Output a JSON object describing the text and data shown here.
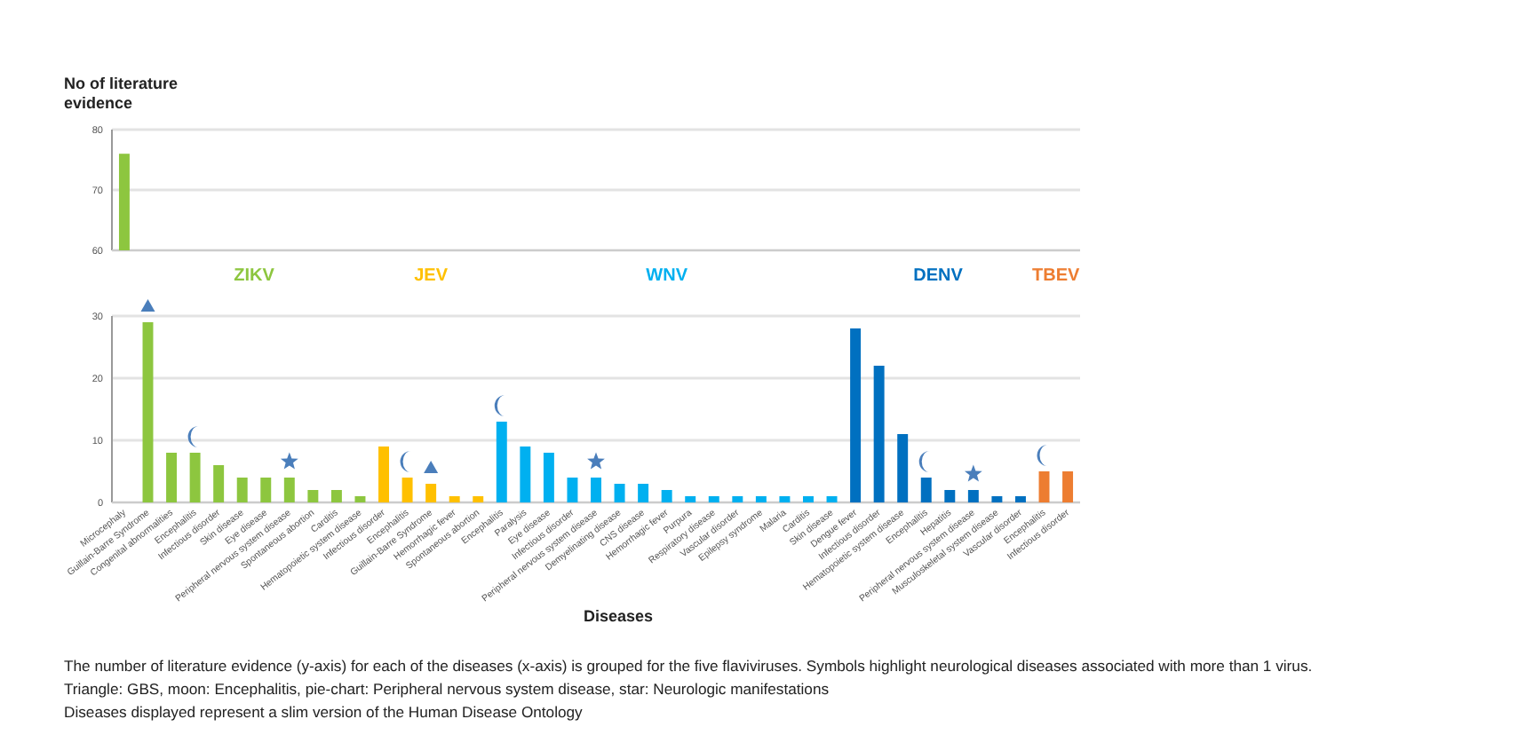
{
  "chart_data": [
    {
      "type": "bar",
      "ylabel": "No of literature evidence",
      "categories": [
        null,
        null,
        null,
        null,
        null,
        null,
        null,
        null,
        null,
        null,
        null,
        null,
        null,
        null,
        null,
        null,
        null,
        null,
        null,
        null,
        null,
        null,
        null,
        null,
        null,
        null,
        null,
        null,
        null,
        null,
        null,
        null,
        null,
        null,
        null,
        null,
        null,
        null,
        null,
        null,
        null
      ],
      "series": [
        {
          "color": "#8dc63f",
          "values": [
            76,
            null,
            null,
            null,
            null,
            null,
            null,
            null,
            null,
            null,
            null,
            null,
            null,
            null,
            null,
            null,
            null,
            null,
            null,
            null,
            null,
            null,
            null,
            null,
            null,
            null,
            null,
            null,
            null,
            null,
            null,
            null,
            null,
            null,
            null,
            null,
            null,
            null,
            null,
            null,
            null
          ]
        }
      ],
      "ylim": [
        60,
        80
      ],
      "yticks": [
        60,
        70,
        80
      ],
      "grid": "y",
      "tick_labels": "y"
    },
    {
      "type": "bar",
      "xlabel": "Diseases",
      "categories": [
        "Microcephaly",
        "Guillain-Barre Syndrome",
        "Congenital abnormalities",
        "Encephalitis",
        "Infectious disorder",
        "Skin disease",
        "Eye disease",
        "Peripheral nervous system disease",
        "Spontaneous abortion",
        "Carditis",
        "Hematopoietic system disease",
        "Infectious disorder",
        "Encephalitis",
        "Guillain-Barre Syndrome",
        "Hemorrhagic fever",
        "Spontaneous abortion",
        "Encephalitis",
        "Paralysis",
        "Eye disease",
        "Infectious disorder",
        "Peripheral nervous system disease",
        "Demyelinating disease",
        "CNS disease",
        "Hemorrhagic fever",
        "Purpura",
        "Respiratory disease",
        "Vascular disorder",
        "Epilepsy syndrome",
        "Malaria",
        "Carditis",
        "Skin disease",
        "Dengue fever",
        "Infectious disorder",
        "Hematopoietic system disease",
        "Encephalitis",
        "Hepatitis",
        "Peripheral nervous system disease",
        "Musculoskeletal system disease",
        "Vascular disorder",
        "Encephalitis",
        "Infectious disorder"
      ],
      "series": [
        {
          "name": "ZIKV",
          "color": "#8dc63f",
          "values": [
            null,
            29,
            8,
            8,
            6,
            4,
            4,
            4,
            2,
            2,
            1,
            null,
            null,
            null,
            null,
            null,
            null,
            null,
            null,
            null,
            null,
            null,
            null,
            null,
            null,
            null,
            null,
            null,
            null,
            null,
            null,
            null,
            null,
            null,
            null,
            null,
            null,
            null,
            null,
            null,
            null
          ]
        },
        {
          "name": "JEV",
          "color": "#ffc000",
          "values": [
            null,
            null,
            null,
            null,
            null,
            null,
            null,
            null,
            null,
            null,
            null,
            9,
            4,
            3,
            1,
            1,
            null,
            null,
            null,
            null,
            null,
            null,
            null,
            null,
            null,
            null,
            null,
            null,
            null,
            null,
            null,
            null,
            null,
            null,
            null,
            null,
            null,
            null,
            null,
            null,
            null
          ]
        },
        {
          "name": "WNV",
          "color": "#00b0f0",
          "values": [
            null,
            null,
            null,
            null,
            null,
            null,
            null,
            null,
            null,
            null,
            null,
            null,
            null,
            null,
            null,
            null,
            13,
            9,
            8,
            4,
            4,
            3,
            3,
            2,
            1,
            1,
            1,
            1,
            1,
            1,
            1,
            null,
            null,
            null,
            null,
            null,
            null,
            null,
            null,
            null,
            null
          ]
        },
        {
          "name": "DENV",
          "color": "#0070c0",
          "values": [
            null,
            null,
            null,
            null,
            null,
            null,
            null,
            null,
            null,
            null,
            null,
            null,
            null,
            null,
            null,
            null,
            null,
            null,
            null,
            null,
            null,
            null,
            null,
            null,
            null,
            null,
            null,
            null,
            null,
            null,
            null,
            28,
            22,
            11,
            4,
            2,
            2,
            1,
            1,
            null,
            null
          ]
        },
        {
          "name": "TBEV",
          "color": "#ed7d31",
          "values": [
            null,
            null,
            null,
            null,
            null,
            null,
            null,
            null,
            null,
            null,
            null,
            null,
            null,
            null,
            null,
            null,
            null,
            null,
            null,
            null,
            null,
            null,
            null,
            null,
            null,
            null,
            null,
            null,
            null,
            null,
            null,
            null,
            null,
            null,
            null,
            null,
            null,
            null,
            null,
            5,
            5
          ]
        }
      ],
      "ylim": [
        0,
        30
      ],
      "yticks": [
        0,
        10,
        20,
        30
      ],
      "grid": "y",
      "annotations": [
        "The number of literature evidence (y-axis) for each of the diseases (x-axis) is grouped for the five flaviviruses. Symbols highlight neurological diseases associated with more than 1 virus.",
        "Triangle: GBS, moon: Encephalitis, pie-chart: Peripheral nervous system disease, star: Neurologic manifestations",
        "Diseases displayed represent a slim version of the Human Disease Ontology"
      ]
    }
  ]
}
